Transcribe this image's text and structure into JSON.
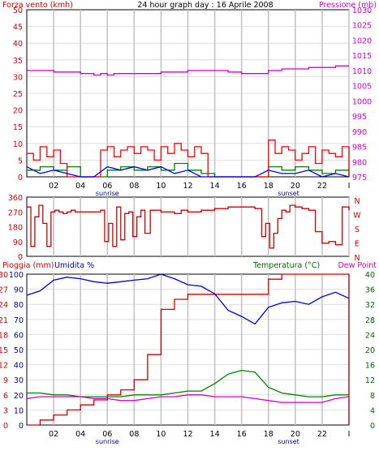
{
  "header": {
    "left_label": "Forza vento (kmh)",
    "title": "24 hour graph day : 16 Aprile 2008",
    "right_label": "Pressione (mb)"
  },
  "bottom_labels": {
    "rain": "Pioggia (mm)",
    "humidity": "Umidita %",
    "temperature": "Temperatura (°C)",
    "dewpoint": "Dew Point"
  },
  "colors": {
    "wind": "#ff0000",
    "wind_avg": "#0000ff",
    "wind_green": "#008000",
    "pressure": "#cc00cc",
    "direction": "#cc0000",
    "humidity": "#0000cc",
    "rain": "#cc0000",
    "temperature": "#008000",
    "dewpoint": "#cc00cc",
    "left_axis": "#cc0000",
    "right_axis": "#cc00cc",
    "dir_right_axis": "#cc0000",
    "hum_axis": "#000099",
    "temp_axis": "#006600",
    "grid_gray": "#c0c0c0"
  },
  "chart_data": [
    {
      "type": "line",
      "panel": "wind-pressure",
      "xlabel": "",
      "x_ticks": [
        "02",
        "04",
        "06",
        "08",
        "10",
        "12",
        "14",
        "16",
        "18",
        "20",
        "22",
        "I"
      ],
      "x_annotations": [
        "sunrise",
        "sunset"
      ],
      "y_left": {
        "label": "Forza vento (kmh)",
        "range": [
          0,
          50
        ],
        "ticks": [
          0,
          5,
          10,
          15,
          20,
          25,
          30,
          35,
          40,
          45,
          50
        ]
      },
      "y_right": {
        "label": "Pressione (mb)",
        "range": [
          975,
          1030
        ],
        "ticks": [
          975,
          980,
          985,
          990,
          995,
          1000,
          1005,
          1010,
          1015,
          1020,
          1025,
          1030
        ]
      },
      "series": [
        {
          "name": "Forza vento (kmh)",
          "axis": "left",
          "x": [
            0,
            0.5,
            1.0,
            1.5,
            2.0,
            2.5,
            3.0,
            3.5,
            4.0,
            4.5,
            5.0,
            5.5,
            6.0,
            6.5,
            7.0,
            7.5,
            8.0,
            8.5,
            9.0,
            9.5,
            10.0,
            10.5,
            11.0,
            11.5,
            12.0,
            12.5,
            13.0,
            13.5,
            14.0,
            14.5,
            15.0,
            15.5,
            16.0,
            16.5,
            17.0,
            17.5,
            18.0,
            18.5,
            19.0,
            19.5,
            20.0,
            20.5,
            21.0,
            21.5,
            22.0,
            22.5,
            23.0,
            23.5,
            24.0
          ],
          "values": [
            7,
            5,
            9,
            6,
            8,
            4,
            0,
            0,
            0,
            0,
            0,
            8,
            9,
            6,
            8,
            9,
            7,
            9,
            8,
            5,
            9,
            7,
            10,
            8,
            6,
            9,
            7,
            0,
            0,
            0,
            0,
            0,
            0,
            0,
            0,
            0,
            11,
            7,
            9,
            8,
            5,
            7,
            9,
            4,
            8,
            7,
            6,
            9,
            0
          ]
        },
        {
          "name": "",
          "axis": "left",
          "x": [
            0,
            1,
            2,
            3,
            4,
            5,
            6,
            7,
            8,
            9,
            10,
            11,
            12,
            13,
            14,
            15,
            16,
            17,
            18,
            19,
            20,
            21,
            22,
            23,
            24
          ],
          "values": [
            2,
            3,
            2,
            3,
            0,
            0,
            2,
            3,
            2,
            3,
            2,
            4,
            2,
            1,
            0,
            0,
            0,
            0,
            3,
            2,
            3,
            2,
            1,
            2,
            0
          ]
        },
        {
          "name": "",
          "axis": "left",
          "x": [
            0,
            1,
            2,
            3,
            4,
            5,
            6,
            7,
            8,
            9,
            10,
            11,
            12,
            13,
            14,
            15,
            16,
            17,
            18,
            19,
            20,
            21,
            22,
            23,
            24
          ],
          "values": [
            3,
            1,
            2,
            1,
            0,
            0,
            3,
            2,
            3,
            2,
            3,
            1,
            2,
            0,
            0,
            0,
            0,
            0,
            2,
            1,
            1,
            2,
            0,
            1,
            0
          ]
        },
        {
          "name": "Pressione (mb)",
          "axis": "right",
          "x": [
            0,
            1,
            2,
            3,
            4,
            5,
            5.5,
            6,
            6.5,
            7,
            8,
            9,
            10,
            11,
            12,
            13,
            14,
            15,
            16,
            17,
            18,
            19,
            20,
            21,
            22,
            23,
            24
          ],
          "values": [
            1010,
            1010,
            1009.5,
            1009.5,
            1009,
            1008.5,
            1009,
            1008.5,
            1009,
            1009,
            1009,
            1009,
            1009.5,
            1009.5,
            1010,
            1010,
            1010,
            1009.5,
            1009,
            1009,
            1010,
            1010.5,
            1010.5,
            1011,
            1011,
            1011.5,
            1011.5
          ]
        }
      ]
    },
    {
      "type": "scatter",
      "panel": "wind-direction",
      "y_left": {
        "range": [
          0,
          360
        ],
        "ticks": [
          0,
          90,
          180,
          270,
          360
        ]
      },
      "y_right_labels": [
        "N",
        "W",
        "S",
        "E",
        "N"
      ],
      "series": [
        {
          "name": "",
          "x": [
            0,
            0.3,
            0.6,
            0.9,
            1.2,
            1.5,
            1.8,
            2.1,
            2.4,
            2.7,
            3.0,
            3.3,
            3.6,
            4.0,
            5.0,
            5.5,
            5.8,
            6.1,
            6.4,
            6.7,
            7.0,
            7.3,
            7.6,
            7.9,
            8.2,
            8.5,
            8.8,
            9.2,
            10,
            11,
            11.5,
            12,
            13,
            14,
            15,
            16,
            17,
            17.5,
            17.8,
            18.1,
            18.4,
            18.7,
            19.0,
            19.3,
            19.6,
            20,
            20.5,
            21,
            21.5,
            22,
            22.5,
            23,
            23.5,
            24
          ],
          "values": [
            300,
            60,
            240,
            310,
            200,
            60,
            270,
            280,
            270,
            260,
            270,
            280,
            270,
            270,
            270,
            280,
            90,
            200,
            60,
            300,
            100,
            260,
            270,
            120,
            240,
            280,
            140,
            280,
            270,
            260,
            280,
            270,
            280,
            290,
            300,
            300,
            290,
            120,
            200,
            50,
            140,
            230,
            280,
            270,
            310,
            300,
            290,
            280,
            150,
            80,
            90,
            70,
            300,
            280
          ]
        }
      ]
    },
    {
      "type": "line",
      "panel": "rain-humidity-temp",
      "y_rain": {
        "label": "Pioggia (mm)",
        "range": [
          0,
          30
        ],
        "ticks": [
          0,
          3,
          6,
          9,
          12,
          15,
          18,
          21,
          24,
          27,
          30
        ]
      },
      "y_humidity": {
        "label": "Umidita %",
        "range": [
          0,
          100
        ],
        "ticks": [
          0,
          10,
          20,
          30,
          40,
          50,
          60,
          70,
          80,
          90,
          100
        ]
      },
      "y_temp": {
        "label": "Temperatura (°C)",
        "range": [
          0,
          40
        ],
        "ticks": [
          0,
          4,
          8,
          12,
          16,
          20,
          24,
          28,
          32,
          36,
          40
        ]
      },
      "series": [
        {
          "name": "Umidita %",
          "axis": "humidity",
          "x": [
            0,
            1,
            2,
            3,
            4,
            5,
            6,
            7,
            8,
            9,
            10,
            11,
            12,
            13,
            14,
            15,
            16,
            17,
            18,
            19,
            20,
            21,
            22,
            23,
            24
          ],
          "values": [
            86,
            89,
            96,
            98,
            97,
            95,
            94,
            95,
            96,
            97,
            100,
            97,
            93,
            92,
            87,
            76,
            72,
            67,
            78,
            81,
            82,
            80,
            85,
            88,
            84
          ]
        },
        {
          "name": "Pioggia (mm)",
          "axis": "rain",
          "x": [
            0,
            1,
            2,
            3,
            4,
            5,
            6,
            7,
            8,
            9,
            10,
            11,
            12,
            13,
            14,
            15,
            16,
            17,
            18,
            19,
            20,
            21,
            22,
            23,
            24
          ],
          "values": [
            0,
            1,
            2,
            3,
            4,
            5,
            6,
            7,
            9,
            14,
            23,
            25,
            26,
            26,
            26,
            26,
            26,
            26,
            29,
            30,
            30,
            30,
            30,
            30,
            0
          ]
        },
        {
          "name": "Temperatura (°C)",
          "axis": "temp",
          "x": [
            0,
            1,
            2,
            3,
            4,
            5,
            6,
            7,
            8,
            9,
            10,
            11,
            12,
            13,
            14,
            15,
            16,
            17,
            18,
            19,
            20,
            21,
            22,
            23,
            24
          ],
          "values": [
            8.5,
            8.5,
            8,
            8,
            7.5,
            7.5,
            7.5,
            7.5,
            8,
            8,
            8,
            8.5,
            9,
            9,
            11,
            13.5,
            14.5,
            14,
            10,
            8.5,
            8,
            7.5,
            7.5,
            8,
            8
          ]
        },
        {
          "name": "Dew Point",
          "axis": "temp",
          "x": [
            0,
            1,
            2,
            3,
            4,
            5,
            6,
            7,
            8,
            9,
            10,
            11,
            12,
            13,
            14,
            15,
            16,
            17,
            18,
            19,
            20,
            21,
            22,
            23,
            24
          ],
          "values": [
            7,
            7.5,
            7.5,
            7.5,
            7.5,
            7,
            7,
            6.5,
            6.5,
            7,
            7.5,
            7.5,
            8,
            8,
            7.5,
            7.5,
            7.5,
            7,
            6.5,
            6,
            6,
            6,
            6,
            7,
            7.5
          ]
        }
      ]
    }
  ]
}
